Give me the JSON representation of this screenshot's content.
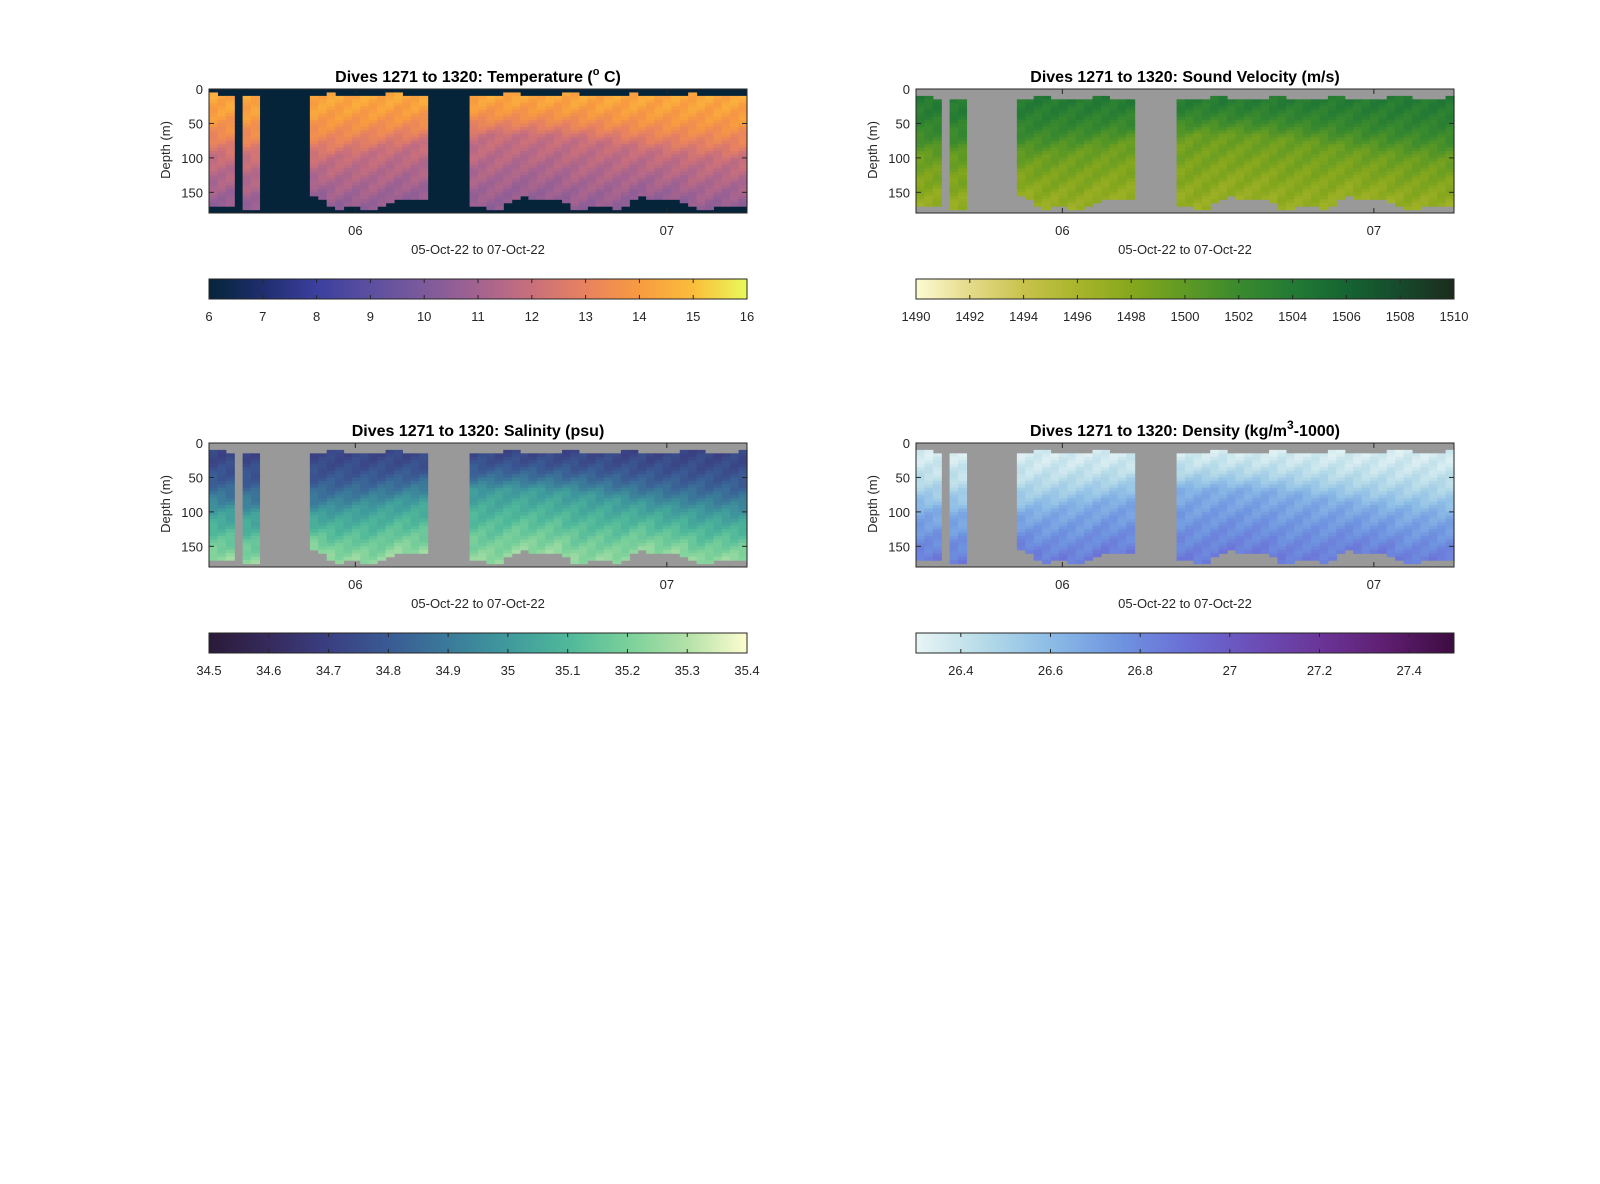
{
  "colors": {
    "no_data": "#999999",
    "temperature_no_data": "#05243a"
  },
  "chart_data": [
    {
      "type": "heatmap",
      "variable": "temperature",
      "title_prefix": "Dives 1271 to 1320: Temperature (",
      "title_deg": "o",
      "title_suffix": " C)",
      "xlabel": "05-Oct-22 to 07-Oct-22",
      "ylabel": "Depth (m)",
      "x_ticks": [
        "06",
        "07"
      ],
      "y_ticks": [
        0,
        50,
        100,
        150
      ],
      "ylim": [
        0,
        180
      ],
      "colorbar": {
        "min": 6,
        "max": 16,
        "ticks": [
          "6",
          "7",
          "8",
          "9",
          "10",
          "11",
          "12",
          "13",
          "14",
          "15",
          "16"
        ],
        "stops": [
          "#05243a",
          "#1f2e6e",
          "#3b3f9e",
          "#5c4fa0",
          "#7d5a9b",
          "#a36390",
          "#c96f7c",
          "#e8825f",
          "#f89b40",
          "#fbbd3b",
          "#e8fa5b"
        ]
      },
      "value_profile": {
        "surface": 14.4,
        "mid": 12.0,
        "deep": 10.6
      }
    },
    {
      "type": "heatmap",
      "variable": "sound_velocity",
      "title": "Dives 1271 to 1320: Sound Velocity (m/s)",
      "xlabel": "05-Oct-22 to 07-Oct-22",
      "ylabel": "Depth (m)",
      "x_ticks": [
        "06",
        "07"
      ],
      "y_ticks": [
        0,
        50,
        100,
        150
      ],
      "ylim": [
        0,
        180
      ],
      "colorbar": {
        "min": 1490,
        "max": 1510,
        "ticks": [
          "1490",
          "1492",
          "1494",
          "1496",
          "1498",
          "1500",
          "1502",
          "1504",
          "1506",
          "1508",
          "1510"
        ],
        "stops": [
          "#fdfbd3",
          "#e5da8a",
          "#c8c24c",
          "#a8b52a",
          "#86a71d",
          "#5f9a24",
          "#3a8a2e",
          "#237a34",
          "#156432",
          "#164a2c",
          "#1c2b1c"
        ]
      },
      "value_profile": {
        "surface": 1504.0,
        "mid": 1499.5,
        "deep": 1497.0
      }
    },
    {
      "type": "heatmap",
      "variable": "salinity",
      "title": "Dives 1271 to 1320: Salinity (psu)",
      "xlabel": "05-Oct-22 to 07-Oct-22",
      "ylabel": "Depth (m)",
      "x_ticks": [
        "06",
        "07"
      ],
      "y_ticks": [
        0,
        50,
        100,
        150
      ],
      "ylim": [
        0,
        180
      ],
      "colorbar": {
        "min": 34.5,
        "max": 35.4,
        "ticks": [
          "34.5",
          "34.6",
          "34.7",
          "34.8",
          "34.9",
          "35",
          "35.1",
          "35.2",
          "35.3",
          "35.4"
        ],
        "stops": [
          "#2a1a38",
          "#352a5c",
          "#3a3f82",
          "#3a5a94",
          "#3b7a9a",
          "#3f9a9c",
          "#4fb89a",
          "#7ad09a",
          "#b3e1a8",
          "#fdfdcf"
        ]
      },
      "value_profile": {
        "surface": 34.72,
        "mid": 35.0,
        "deep": 35.25
      }
    },
    {
      "type": "heatmap",
      "variable": "density",
      "title_prefix": "Dives 1271 to 1320: Density (kg/m",
      "title_sup": "3",
      "title_suffix": "-1000)",
      "xlabel": "05-Oct-22 to 07-Oct-22",
      "ylabel": "Depth (m)",
      "x_ticks": [
        "06",
        "07"
      ],
      "y_ticks": [
        0,
        50,
        100,
        150
      ],
      "ylim": [
        0,
        180
      ],
      "colorbar": {
        "min": 26.3,
        "max": 27.5,
        "ticks": [
          "26.4",
          "26.6",
          "26.8",
          "27",
          "27.2",
          "27.4"
        ],
        "stops": [
          "#e8f5f5",
          "#b6dbe8",
          "#8cbce6",
          "#6f95e0",
          "#6a6fd6",
          "#6b4fb8",
          "#6a3598",
          "#5e1e70",
          "#3c0c40"
        ]
      },
      "value_profile": {
        "surface": 26.35,
        "mid": 26.65,
        "deep": 26.85
      }
    }
  ]
}
